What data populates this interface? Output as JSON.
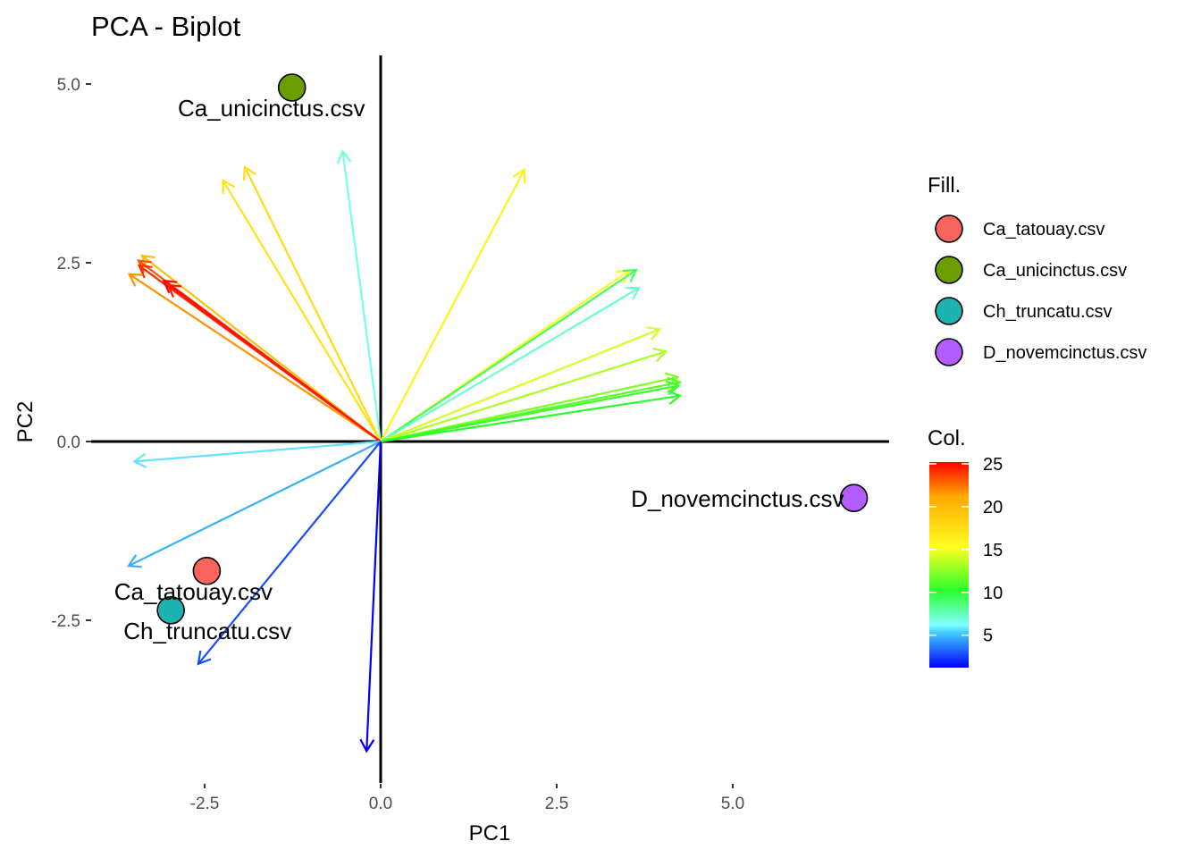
{
  "chart_data": {
    "type": "scatter",
    "title": "PCA - Biplot",
    "xlabel": "PC1",
    "ylabel": "PC2",
    "xlim": [
      -4.1,
      7.2
    ],
    "ylim": [
      -4.9,
      5.5
    ],
    "x_ticks": [
      {
        "value": -2.5,
        "label": "-2.5"
      },
      {
        "value": 0,
        "label": "0.0"
      },
      {
        "value": 2.5,
        "label": "2.5"
      },
      {
        "value": 5,
        "label": "5.0"
      }
    ],
    "y_ticks": [
      {
        "value": 5,
        "label": "5.0"
      },
      {
        "value": 2.5,
        "label": "2.5"
      },
      {
        "value": 0,
        "label": "0.0"
      },
      {
        "value": -2.5,
        "label": "-2.5"
      }
    ],
    "grid": false,
    "individuals": [
      {
        "label": "Ca_unicinctus.csv",
        "x": -1.26,
        "y": 4.95,
        "fill": "#6a9e00"
      },
      {
        "label": "D_novemcinctus.csv",
        "x": 6.72,
        "y": -0.79,
        "fill": "#b35cff"
      },
      {
        "label": "Ca_tatouay.csv",
        "x": -2.47,
        "y": -1.81,
        "fill": "#f8635e"
      },
      {
        "label": "Ch_truncatu.csv",
        "x": -2.98,
        "y": -2.36,
        "fill": "#1eb3b3"
      }
    ],
    "variables": [
      {
        "x": -0.54,
        "y": 4.06,
        "contrib": 6.5
      },
      {
        "x": -1.93,
        "y": 3.84,
        "contrib": 17.5
      },
      {
        "x": -2.24,
        "y": 3.65,
        "contrib": 17
      },
      {
        "x": 2.04,
        "y": 3.8,
        "contrib": 16
      },
      {
        "x": -3.39,
        "y": 2.6,
        "contrib": 19.5
      },
      {
        "x": -3.44,
        "y": 2.53,
        "contrib": 23
      },
      {
        "x": -3.43,
        "y": 2.46,
        "contrib": 24
      },
      {
        "x": -3.57,
        "y": 2.34,
        "contrib": 21.5
      },
      {
        "x": -3.08,
        "y": 2.25,
        "contrib": 25
      },
      {
        "x": -3.02,
        "y": 2.19,
        "contrib": 24.5
      },
      {
        "x": 3.53,
        "y": 2.39,
        "contrib": 15.5
      },
      {
        "x": 3.63,
        "y": 2.4,
        "contrib": 9
      },
      {
        "x": 3.67,
        "y": 2.15,
        "contrib": 7
      },
      {
        "x": 3.96,
        "y": 1.57,
        "contrib": 14
      },
      {
        "x": 4.05,
        "y": 1.26,
        "contrib": 13
      },
      {
        "x": 4.22,
        "y": 0.9,
        "contrib": 12
      },
      {
        "x": 4.25,
        "y": 0.83,
        "contrib": 11
      },
      {
        "x": 4.23,
        "y": 0.78,
        "contrib": 10.5
      },
      {
        "x": 4.25,
        "y": 0.64,
        "contrib": 10
      },
      {
        "x": -3.5,
        "y": -0.28,
        "contrib": 5.5
      },
      {
        "x": -3.58,
        "y": -1.74,
        "contrib": 4.5
      },
      {
        "x": -2.59,
        "y": -3.11,
        "contrib": 2.5
      },
      {
        "x": -0.2,
        "y": -4.33,
        "contrib": 1
      }
    ],
    "color_scale": {
      "min": 1,
      "max": 25,
      "ticks": [
        5,
        10,
        15,
        20,
        25
      ]
    },
    "legend": {
      "position": "right",
      "fill_title": "Fill.",
      "col_title": "Col.",
      "fill_entries": [
        {
          "label": "Ca_tatouay.csv",
          "color": "#f8635e"
        },
        {
          "label": "Ca_unicinctus.csv",
          "color": "#6a9e00"
        },
        {
          "label": "Ch_truncatu.csv",
          "color": "#1eb3b3"
        },
        {
          "label": "D_novemcinctus.csv",
          "color": "#b35cff"
        }
      ]
    }
  }
}
